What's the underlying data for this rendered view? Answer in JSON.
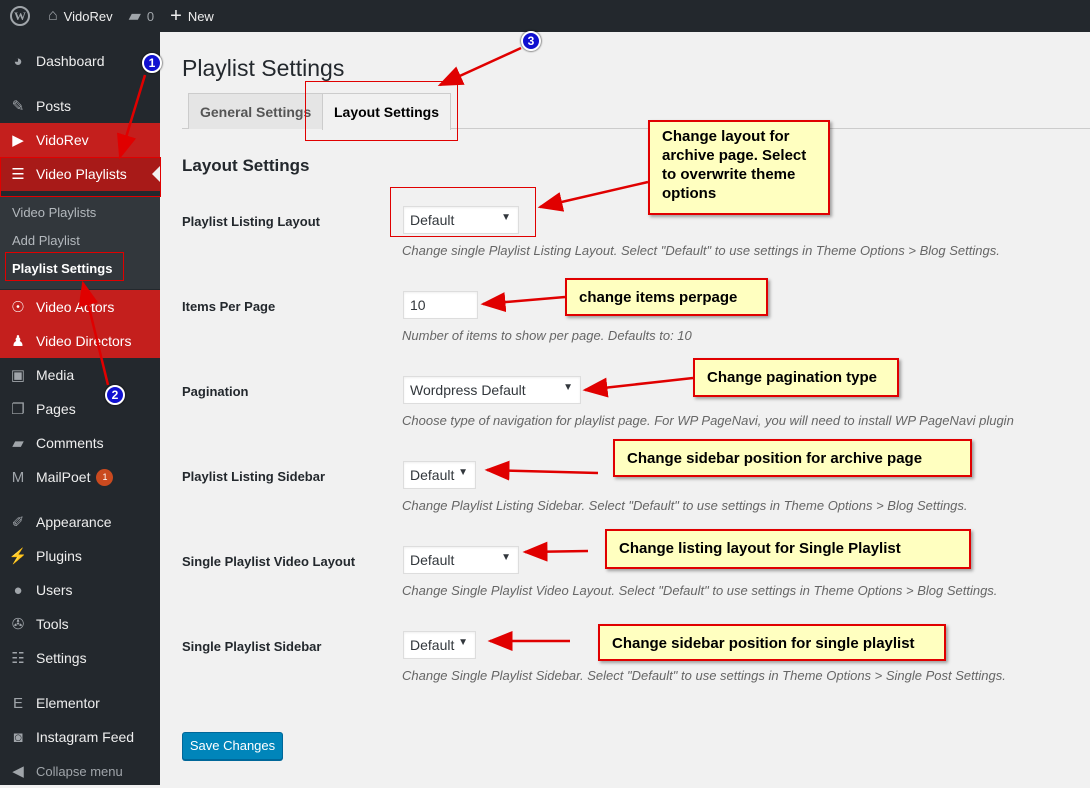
{
  "adminbar": {
    "site": "VidoRev",
    "comments": "0",
    "new": "New"
  },
  "sidebar": {
    "items": [
      {
        "label": "Dashboard",
        "icon": "dashboard-icon"
      },
      {
        "label": "Posts",
        "icon": "pin-icon"
      },
      {
        "label": "VidoRev",
        "icon": "video-icon"
      },
      {
        "label": "Video Playlists",
        "icon": "playlist-icon"
      },
      {
        "label": "Video Actors",
        "icon": "accessibility-icon"
      },
      {
        "label": "Video Directors",
        "icon": "user-icon"
      },
      {
        "label": "Media",
        "icon": "media-icon"
      },
      {
        "label": "Pages",
        "icon": "pages-icon"
      },
      {
        "label": "Comments",
        "icon": "comment-icon"
      },
      {
        "label": "MailPoet",
        "icon": "mailpoet-icon",
        "badge": "1"
      },
      {
        "label": "Appearance",
        "icon": "brush-icon"
      },
      {
        "label": "Plugins",
        "icon": "plugin-icon"
      },
      {
        "label": "Users",
        "icon": "users-icon"
      },
      {
        "label": "Tools",
        "icon": "wrench-icon"
      },
      {
        "label": "Settings",
        "icon": "settings-icon"
      },
      {
        "label": "Elementor",
        "icon": "elementor-icon"
      },
      {
        "label": "Instagram Feed",
        "icon": "camera-icon"
      },
      {
        "label": "Collapse menu",
        "icon": "collapse-icon"
      }
    ],
    "submenu": [
      "Video Playlists",
      "Add Playlist",
      "Playlist Settings"
    ]
  },
  "page": {
    "title": "Playlist Settings",
    "tabs": [
      "General Settings",
      "Layout Settings"
    ],
    "section": "Layout Settings",
    "fields": [
      {
        "label": "Playlist Listing Layout",
        "value": "Default",
        "desc": "Change single Playlist Listing Layout. Select \"Default\" to use settings in Theme Options > Blog Settings."
      },
      {
        "label": "Items Per Page",
        "value": "10",
        "desc": "Number of items to show per page. Defaults to: 10"
      },
      {
        "label": "Pagination",
        "value": "Wordpress Default",
        "desc": "Choose type of navigation for playlist page. For WP PageNavi, you will need to install WP PageNavi plugin"
      },
      {
        "label": "Playlist Listing Sidebar",
        "value": "Default",
        "desc": "Change Playlist Listing Sidebar. Select \"Default\" to use settings in Theme Options > Blog Settings."
      },
      {
        "label": "Single Playlist Video Layout",
        "value": "Default",
        "desc": "Change Single Playlist Video Layout. Select \"Default\" to use settings in Theme Options > Blog Settings."
      },
      {
        "label": "Single Playlist Sidebar",
        "value": "Default",
        "desc": "Change Single Playlist Sidebar. Select \"Default\" to use settings in Theme Options > Single Post Settings."
      }
    ],
    "save": "Save Changes"
  },
  "annotations": {
    "numbers": [
      "1",
      "2",
      "3"
    ],
    "callouts": [
      "Change layout for archive page. Select to overwrite theme options",
      "change items perpage",
      "Change pagination type",
      "Change sidebar position for archive page",
      "Change listing layout for Single Playlist",
      "Change sidebar position for single playlist"
    ],
    "color": "#e00000",
    "callout_bg": "#ffffc0"
  }
}
